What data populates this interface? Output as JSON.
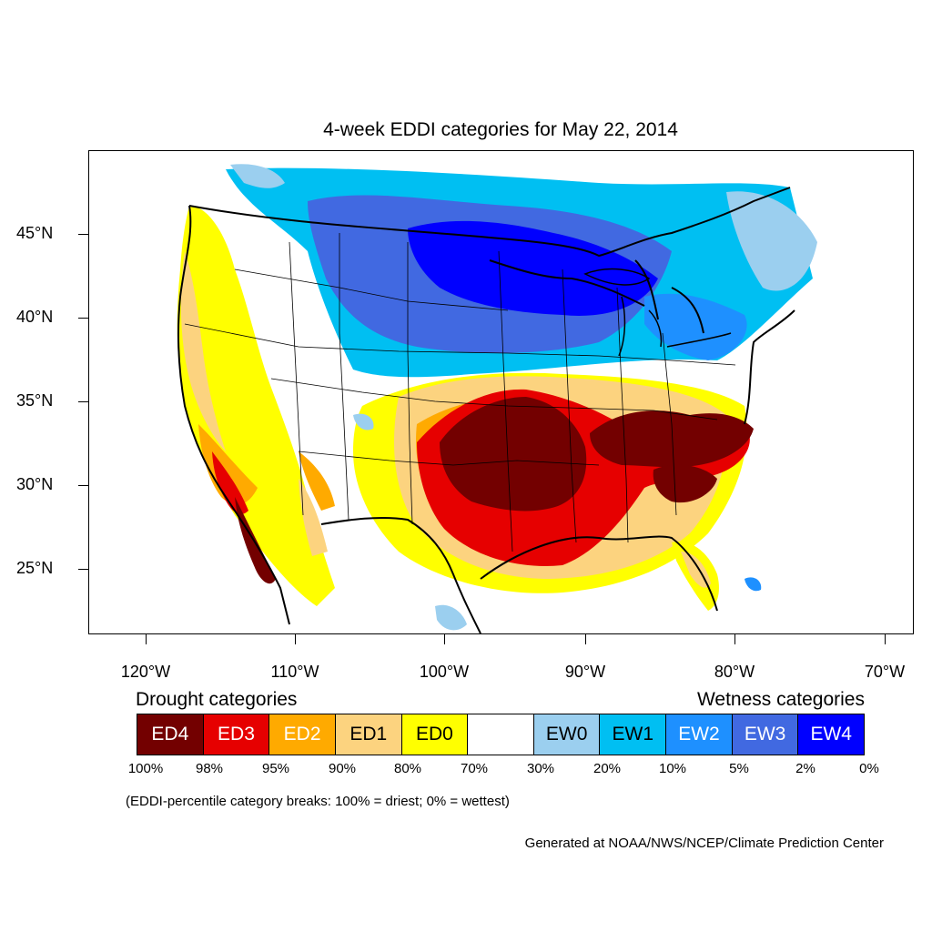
{
  "title": "4-week EDDI categories for May 22, 2014",
  "latitude_labels": [
    "45°N",
    "40°N",
    "35°N",
    "30°N",
    "25°N"
  ],
  "longitude_labels": [
    "120°W",
    "110°W",
    "100°W",
    "90°W",
    "80°W",
    "70°W"
  ],
  "legend": {
    "drought_heading": "Drought categories",
    "wetness_heading": "Wetness categories",
    "categories": [
      {
        "label": "ED4",
        "color": "#730000",
        "text_color": "#ffffff"
      },
      {
        "label": "ED3",
        "color": "#e60000",
        "text_color": "#ffffff"
      },
      {
        "label": "ED2",
        "color": "#ffaa00",
        "text_color": "#ffffff"
      },
      {
        "label": "ED1",
        "color": "#fcd37f",
        "text_color": "#000000"
      },
      {
        "label": "ED0",
        "color": "#ffff00",
        "text_color": "#000000"
      },
      {
        "label": "",
        "color": "#ffffff",
        "text_color": "#000000"
      },
      {
        "label": "EW0",
        "color": "#9bcfef",
        "text_color": "#000000"
      },
      {
        "label": "EW1",
        "color": "#00bff2",
        "text_color": "#000000"
      },
      {
        "label": "EW2",
        "color": "#1e90ff",
        "text_color": "#ffffff"
      },
      {
        "label": "EW3",
        "color": "#4169e1",
        "text_color": "#ffffff"
      },
      {
        "label": "EW4",
        "color": "#0000ff",
        "text_color": "#ffffff"
      }
    ],
    "percentile_breaks": [
      "100%",
      "98%",
      "95%",
      "90%",
      "80%",
      "70%",
      "30%",
      "20%",
      "10%",
      "5%",
      "2%",
      "0%"
    ]
  },
  "note": "(EDDI-percentile category breaks: 100% = driest; 0% = wettest)",
  "credit": "Generated at NOAA/NWS/NCEP/Climate Prediction Center"
}
